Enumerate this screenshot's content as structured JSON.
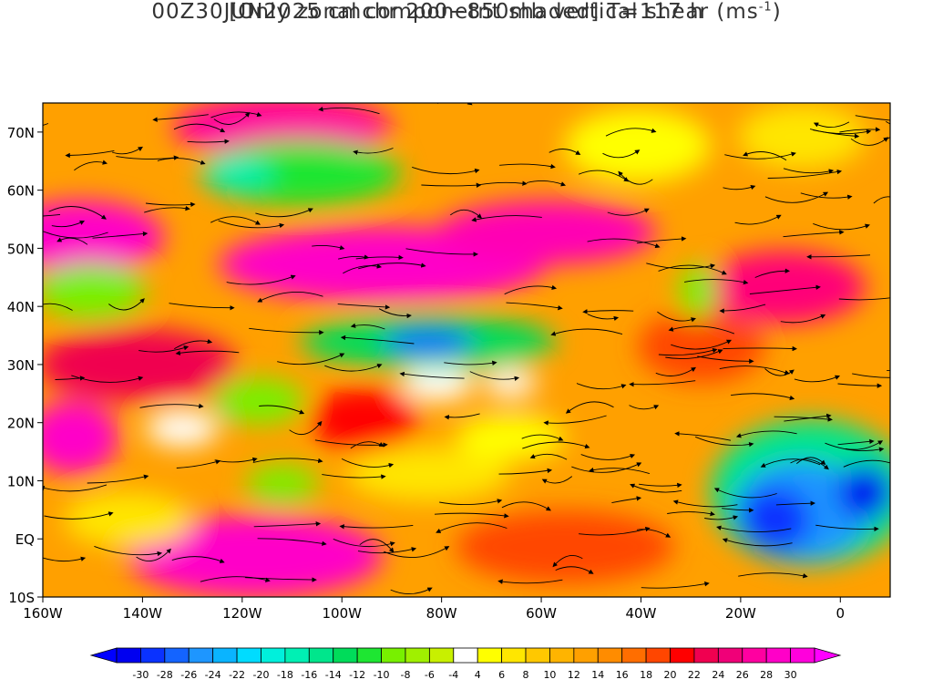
{
  "title": {
    "line1": "00Z30JUN2025 cmchr 200−850mb vertical shear (ms",
    "unit_sup": "-1",
    "line1_end": ")",
    "line2": "[Only zonal componetnt shaded] T=117 h"
  },
  "axes": {
    "lat_labels": [
      "70N",
      "60N",
      "50N",
      "40N",
      "30N",
      "20N",
      "10N",
      "EQ",
      "10S"
    ],
    "lat_values": [
      70,
      60,
      50,
      40,
      30,
      20,
      10,
      0,
      -10
    ],
    "lon_labels": [
      "160W",
      "140W",
      "120W",
      "100W",
      "80W",
      "60W",
      "40W",
      "20W",
      "0"
    ],
    "lon_values": [
      -160,
      -140,
      -120,
      -100,
      -80,
      -60,
      -40,
      -20,
      0
    ],
    "lon_range": [
      -160,
      10
    ],
    "lat_range": [
      -10,
      75
    ]
  },
  "colorbar": {
    "labels": [
      "-30",
      "-28",
      "-26",
      "-24",
      "-22",
      "-20",
      "-18",
      "-16",
      "-14",
      "-12",
      "-10",
      "-8",
      "-6",
      "-4",
      "4",
      "6",
      "8",
      "10",
      "12",
      "14",
      "16",
      "18",
      "20",
      "22",
      "24",
      "26",
      "28",
      "30"
    ],
    "colors": [
      "#0000f0",
      "#0a32ff",
      "#1464ff",
      "#1e96ff",
      "#0ab4ff",
      "#00dcff",
      "#00f0dc",
      "#00f0b4",
      "#00e68c",
      "#00dc5a",
      "#1ee632",
      "#78f000",
      "#a0f000",
      "#c8f000",
      "#ffffff",
      "#ffff00",
      "#ffe600",
      "#ffc800",
      "#ffb400",
      "#ffa000",
      "#ff8c00",
      "#ff6e00",
      "#ff4600",
      "#ff0000",
      "#f00050",
      "#f00078",
      "#ff00a0",
      "#ff00c8",
      "#ff00dc"
    ],
    "under_color": "#0000ff",
    "over_color": "#ff00ff"
  }
}
